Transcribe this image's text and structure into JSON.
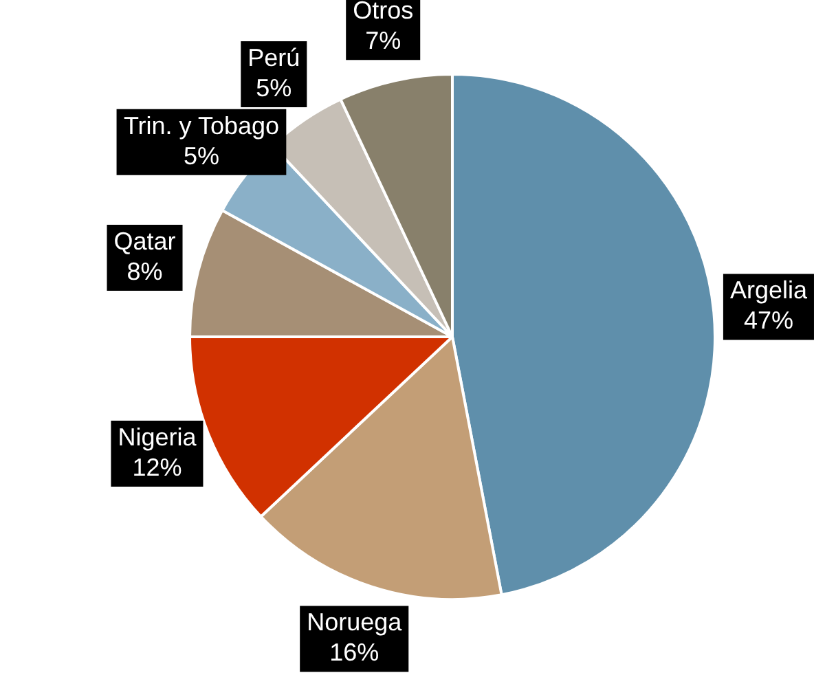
{
  "chart_data": {
    "type": "pie",
    "categories": [
      "Argelia",
      "Noruega",
      "Nigeria",
      "Qatar",
      "Trin. y Tobago",
      "Perú",
      "Otros"
    ],
    "values": [
      47,
      16,
      12,
      8,
      5,
      5,
      7
    ],
    "value_labels": [
      "47%",
      "16%",
      "12%",
      "8%",
      "5%",
      "5%",
      "7%"
    ],
    "colors": [
      "#5f8fab",
      "#c39e76",
      "#d13100",
      "#a68f75",
      "#8ab0c8",
      "#c6bfb6",
      "#88806b"
    ],
    "legend": false
  }
}
